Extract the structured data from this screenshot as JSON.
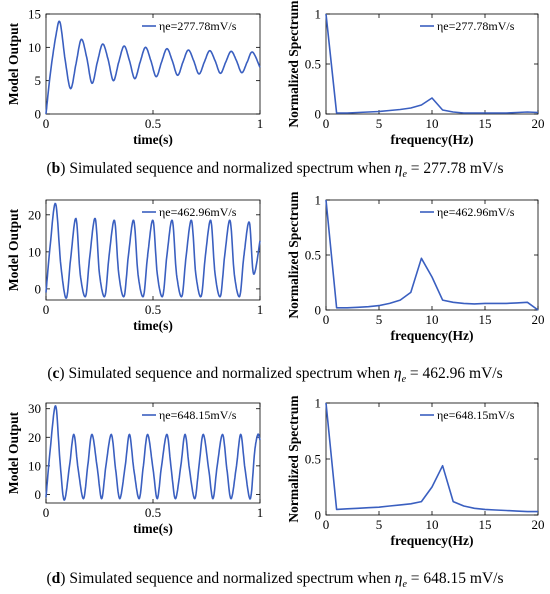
{
  "panels": [
    {
      "caption": {
        "letter": "b",
        "text": "Simulated sequence and normalized spectrum when",
        "symbol": "η",
        "sub": "e",
        "rest": "= 277.78 mV/s"
      },
      "time": {
        "legend": "ηe=277.78mV/s"
      },
      "freq": {
        "legend": "ηe=277.78mV/s"
      }
    },
    {
      "caption": {
        "letter": "c",
        "text": "Simulated sequence and normalized spectrum when",
        "symbol": "η",
        "sub": "e",
        "rest": "= 462.96 mV/s"
      },
      "time": {
        "legend": "ηe=462.96mV/s"
      },
      "freq": {
        "legend": "ηe=462.96mV/s"
      }
    },
    {
      "caption": {
        "letter": "d",
        "text": "Simulated sequence and normalized spectrum when",
        "symbol": "η",
        "sub": "e",
        "rest": "= 648.15 mV/s"
      },
      "time": {
        "legend": "ηe=648.15mV/s"
      },
      "freq": {
        "legend": "ηe=648.15mV/s"
      }
    }
  ],
  "chart_data": [
    {
      "type": "line",
      "ylabel": "Model Output",
      "xlabel": "time(s)",
      "xlim": [
        0,
        1
      ],
      "ylim": [
        0,
        15
      ],
      "xticks": [
        0,
        0.5,
        1
      ],
      "xtick_labels": [
        "0",
        "0.5",
        "1"
      ],
      "yticks": [
        0,
        5,
        10,
        15
      ],
      "ytick_labels": [
        "0",
        "5",
        "10",
        "15"
      ],
      "legend_placement": "top-right",
      "line_color": "#3a5fc0",
      "series": [
        {
          "name": "ηe=277.78mV/s",
          "x": [
            0,
            0.02,
            0.045,
            0.065,
            0.09,
            0.115,
            0.14,
            0.165,
            0.19,
            0.215,
            0.24,
            0.265,
            0.29,
            0.315,
            0.34,
            0.365,
            0.39,
            0.415,
            0.44,
            0.465,
            0.49,
            0.515,
            0.54,
            0.565,
            0.59,
            0.615,
            0.64,
            0.665,
            0.69,
            0.715,
            0.74,
            0.765,
            0.79,
            0.815,
            0.84,
            0.865,
            0.89,
            0.915,
            0.94,
            0.965,
            1.0
          ],
          "y": [
            0,
            6,
            11.5,
            13.8,
            8,
            3.8,
            7.5,
            11.2,
            8.5,
            4.6,
            7.8,
            10.5,
            8.2,
            5.0,
            7.8,
            10.2,
            8.0,
            5.3,
            7.8,
            10.0,
            8.0,
            5.6,
            7.8,
            9.8,
            8.0,
            5.8,
            7.8,
            9.6,
            8.0,
            6.0,
            7.8,
            9.5,
            8.0,
            6.1,
            7.8,
            9.4,
            8.0,
            6.2,
            7.8,
            9.3,
            7.0
          ]
        }
      ]
    },
    {
      "type": "line",
      "ylabel": "Normalized Spectrum",
      "xlabel": "frequency(Hz)",
      "xlim": [
        0,
        20
      ],
      "ylim": [
        0,
        1
      ],
      "xticks": [
        0,
        5,
        10,
        15,
        20
      ],
      "xtick_labels": [
        "0",
        "5",
        "10",
        "15",
        "20"
      ],
      "yticks": [
        0,
        0.5,
        1
      ],
      "ytick_labels": [
        "0",
        "0.5",
        "1"
      ],
      "legend_placement": "top-right",
      "line_color": "#3a5fc0",
      "series": [
        {
          "name": "ηe=277.78mV/s",
          "x": [
            0,
            1,
            2,
            3,
            4,
            5,
            6,
            7,
            8,
            9,
            10,
            11,
            12,
            13,
            14,
            15,
            16,
            17,
            18,
            19,
            20
          ],
          "y": [
            1.0,
            0.01,
            0.01,
            0.015,
            0.02,
            0.025,
            0.035,
            0.045,
            0.06,
            0.09,
            0.16,
            0.04,
            0.02,
            0.01,
            0.01,
            0.01,
            0.01,
            0.01,
            0.015,
            0.02,
            0.015
          ]
        }
      ]
    },
    {
      "type": "line",
      "ylabel": "Model Output",
      "xlabel": "time(s)",
      "xlim": [
        0,
        1
      ],
      "ylim": [
        -3,
        24
      ],
      "xticks": [
        0,
        0.5,
        1
      ],
      "xtick_labels": [
        "0",
        "0.5",
        "1"
      ],
      "yticks": [
        0,
        10,
        20
      ],
      "ytick_labels": [
        "0",
        "10",
        "20"
      ],
      "legend_placement": "top-right",
      "line_color": "#3a5fc0",
      "series": [
        {
          "name": "ηe=462.96mV/s",
          "x": [
            0,
            0.02,
            0.045,
            0.07,
            0.095,
            0.115,
            0.14,
            0.16,
            0.185,
            0.205,
            0.23,
            0.25,
            0.275,
            0.295,
            0.32,
            0.34,
            0.365,
            0.385,
            0.41,
            0.43,
            0.455,
            0.475,
            0.5,
            0.52,
            0.545,
            0.565,
            0.59,
            0.61,
            0.635,
            0.655,
            0.68,
            0.7,
            0.725,
            0.745,
            0.77,
            0.79,
            0.815,
            0.835,
            0.86,
            0.88,
            0.905,
            0.925,
            0.95,
            0.97,
            1.0
          ],
          "y": [
            -1,
            12,
            23,
            6,
            -2.5,
            8,
            19,
            4,
            -2,
            9,
            19,
            4,
            -2,
            9,
            18.5,
            4,
            -2,
            9,
            18.5,
            4,
            -2,
            9,
            18.5,
            4,
            -2,
            9,
            18.5,
            4,
            -2,
            9,
            18.5,
            4,
            -2,
            9,
            18.5,
            4,
            -2,
            9,
            18.5,
            4,
            -2,
            9,
            18,
            4,
            13
          ]
        }
      ]
    },
    {
      "type": "line",
      "ylabel": "Normalized Spectrum",
      "xlabel": "frequency(Hz)",
      "xlim": [
        0,
        20
      ],
      "ylim": [
        0,
        1
      ],
      "xticks": [
        0,
        5,
        10,
        15,
        20
      ],
      "xtick_labels": [
        "0",
        "5",
        "10",
        "15",
        "20"
      ],
      "yticks": [
        0,
        0.5,
        1
      ],
      "ytick_labels": [
        "0",
        "0.5",
        "1"
      ],
      "legend_placement": "top-right",
      "line_color": "#3a5fc0",
      "series": [
        {
          "name": "ηe=462.96mV/s",
          "x": [
            0,
            1,
            2,
            3,
            4,
            5,
            6,
            7,
            8,
            9,
            10,
            11,
            12,
            13,
            14,
            15,
            16,
            17,
            18,
            19,
            20
          ],
          "y": [
            1.0,
            0.02,
            0.02,
            0.025,
            0.03,
            0.04,
            0.06,
            0.09,
            0.16,
            0.47,
            0.3,
            0.09,
            0.07,
            0.06,
            0.055,
            0.06,
            0.06,
            0.06,
            0.065,
            0.07,
            0.0
          ]
        }
      ]
    },
    {
      "type": "line",
      "ylabel": "Model Output",
      "xlabel": "time(s)",
      "xlim": [
        0,
        1
      ],
      "ylim": [
        -3,
        32
      ],
      "xticks": [
        0,
        0.5,
        1
      ],
      "xtick_labels": [
        "0",
        "0.5",
        "1"
      ],
      "yticks": [
        0,
        10,
        20,
        30
      ],
      "ytick_labels": [
        "0",
        "10",
        "20",
        "30"
      ],
      "legend_placement": "top-right",
      "line_color": "#3a5fc0",
      "series": [
        {
          "name": "ηe=648.15mV/s",
          "x": [
            0,
            0.02,
            0.045,
            0.065,
            0.085,
            0.11,
            0.13,
            0.15,
            0.175,
            0.195,
            0.215,
            0.24,
            0.26,
            0.28,
            0.305,
            0.325,
            0.345,
            0.37,
            0.39,
            0.41,
            0.435,
            0.455,
            0.475,
            0.5,
            0.52,
            0.54,
            0.565,
            0.585,
            0.605,
            0.63,
            0.65,
            0.67,
            0.695,
            0.715,
            0.735,
            0.76,
            0.78,
            0.8,
            0.825,
            0.845,
            0.865,
            0.89,
            0.91,
            0.93,
            0.955,
            0.975,
            0.99,
            1.0
          ],
          "y": [
            -1,
            16,
            31,
            12,
            -2,
            10,
            21,
            9,
            -1.5,
            10,
            21,
            9,
            -1.5,
            10,
            21,
            9,
            -1.5,
            10,
            21,
            9,
            -1.5,
            10,
            21,
            9,
            -1.5,
            10,
            21,
            9,
            -1.5,
            10,
            21,
            9,
            -1.5,
            10,
            21,
            9,
            -1.5,
            10,
            21,
            9,
            -1.5,
            10,
            21,
            9,
            -1.5,
            15,
            21,
            19
          ]
        }
      ]
    },
    {
      "type": "line",
      "ylabel": "Normalized Spectrum",
      "xlabel": "frequency(Hz)",
      "xlim": [
        0,
        20
      ],
      "ylim": [
        0,
        1
      ],
      "xticks": [
        0,
        5,
        10,
        15,
        20
      ],
      "xtick_labels": [
        "0",
        "5",
        "10",
        "15",
        "20"
      ],
      "yticks": [
        0,
        0.5,
        1
      ],
      "ytick_labels": [
        "0",
        "0.5",
        "1"
      ],
      "legend_placement": "top-right",
      "line_color": "#3a5fc0",
      "series": [
        {
          "name": "ηe=648.15mV/s",
          "x": [
            0,
            1,
            2,
            3,
            4,
            5,
            6,
            7,
            8,
            9,
            10,
            11,
            12,
            13,
            14,
            15,
            16,
            17,
            18,
            19,
            20
          ],
          "y": [
            1.0,
            0.05,
            0.055,
            0.06,
            0.065,
            0.07,
            0.08,
            0.09,
            0.1,
            0.12,
            0.25,
            0.44,
            0.12,
            0.08,
            0.06,
            0.05,
            0.045,
            0.04,
            0.035,
            0.03,
            0.03
          ]
        }
      ]
    }
  ]
}
